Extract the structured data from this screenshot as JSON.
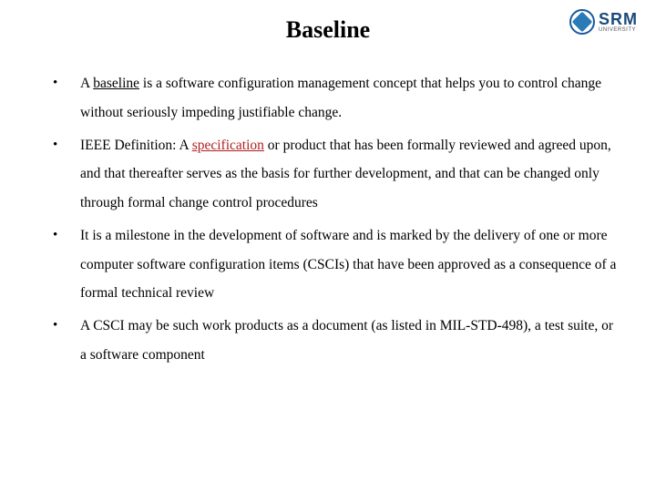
{
  "title": "Baseline",
  "logo": {
    "brand": "SRM",
    "sub": "UNIVERSITY",
    "circle_border": "#1a5a9a",
    "inner_color": "#2a7ab8",
    "brand_color": "#1a4a7a"
  },
  "bullets": [
    {
      "pre": "A ",
      "highlight": "baseline",
      "highlight_class": "underline",
      "post": " is a software configuration management concept that helps you to control change without seriously impeding justifiable change."
    },
    {
      "pre": "IEEE Definition: A ",
      "highlight": "specification",
      "highlight_class": "redlink",
      "post": " or product that has been formally reviewed and agreed upon, and that thereafter serves as the basis for further development, and that can be changed only through formal change control procedures"
    },
    {
      "pre": "",
      "highlight": "",
      "highlight_class": "",
      "post": "It is a milestone in the development of software and is marked by the delivery of one or more computer software configuration items (CSCIs) that have been approved as a consequence of a formal technical review"
    },
    {
      "pre": "",
      "highlight": "",
      "highlight_class": "",
      "post": "A CSCI may be such work products as a document (as listed in MIL-STD-498), a test suite, or a software component"
    }
  ],
  "styling": {
    "background": "#ffffff",
    "title_fontsize": 26,
    "body_fontsize": 15.5,
    "line_height": 2.05,
    "text_color": "#000000",
    "link_color": "#b02020",
    "font_family": "Georgia, Times New Roman, serif"
  }
}
